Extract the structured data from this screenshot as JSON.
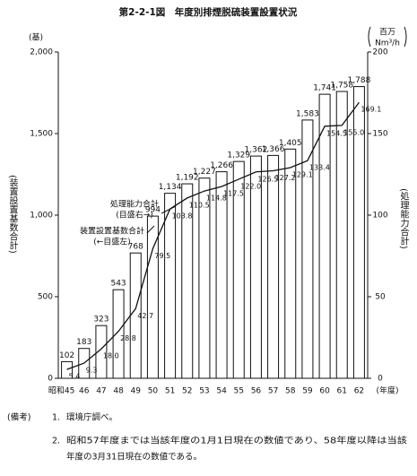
{
  "chart_data": {
    "type": "bar-line",
    "title": "第2-2-1図　年度別排煙脱硫装置設置状況",
    "y_unit": "(基)",
    "y2_unit": [
      "百万",
      "Nm³/h"
    ],
    "ylabel": "(装置設置基数合計)",
    "y2label": "(処理能力合計)",
    "xlabel": "(年度)",
    "categories": [
      "昭和45",
      "46",
      "47",
      "48",
      "49",
      "50",
      "51",
      "52",
      "53",
      "54",
      "55",
      "56",
      "57",
      "58",
      "59",
      "60",
      "61",
      "62"
    ],
    "series": [
      {
        "name": "装置設置基数合計",
        "note": "(←目盛左)",
        "type": "bar",
        "color": "#ffffff",
        "axis": "y",
        "values": [
          102,
          183,
          323,
          543,
          768,
          994,
          1134,
          1192,
          1227,
          1266,
          1329,
          1362,
          1366,
          1405,
          1583,
          1741,
          1758,
          1788
        ],
        "value_labels": [
          "102",
          "183",
          "323",
          "543",
          "768",
          "994",
          "1,134",
          "1,192",
          "1,227",
          "1,266",
          "1,329",
          "1,362",
          "1,366",
          "1,405",
          "1,583",
          "1,741",
          "1,758",
          "1,788"
        ]
      },
      {
        "name": "処理能力合計",
        "note": "(目盛右→)",
        "type": "line",
        "color": "#111111",
        "axis": "y2",
        "values": [
          5.4,
          9.3,
          18.0,
          28.8,
          42.7,
          79.5,
          103.8,
          110.5,
          114.8,
          117.5,
          122.0,
          126.5,
          127.2,
          129.1,
          133.4,
          154.5,
          155.0,
          169.1
        ],
        "value_labels": [
          "5.4",
          "9.3",
          "18.0",
          "28.8",
          "42.7",
          "79.5",
          "103.8",
          "110.5",
          "114.8",
          "117.5",
          "122.0",
          "126.5",
          "127.2",
          "129.1",
          "133.4",
          "154.5",
          "155.0",
          "169.1"
        ]
      }
    ],
    "ylim": [
      0,
      2000
    ],
    "yticks": [
      0,
      500,
      {
        "value": 1000,
        "label": "1,000"
      },
      {
        "value": 1500,
        "label": "1,500"
      },
      {
        "value": 2000,
        "label": "2,000"
      }
    ],
    "y2lim": [
      0,
      200
    ],
    "y2ticks": [
      0,
      50,
      100,
      150,
      200
    ],
    "notes": [
      {
        "head": "(備考)",
        "number": "1.",
        "text": "環境庁調べ。"
      },
      {
        "number": "2.",
        "text": "昭和57年度までは当該年度の1月1日現在の数値であり、58年度以降は当該",
        "text2": "年度の3月31日現在の数値である。"
      }
    ]
  }
}
